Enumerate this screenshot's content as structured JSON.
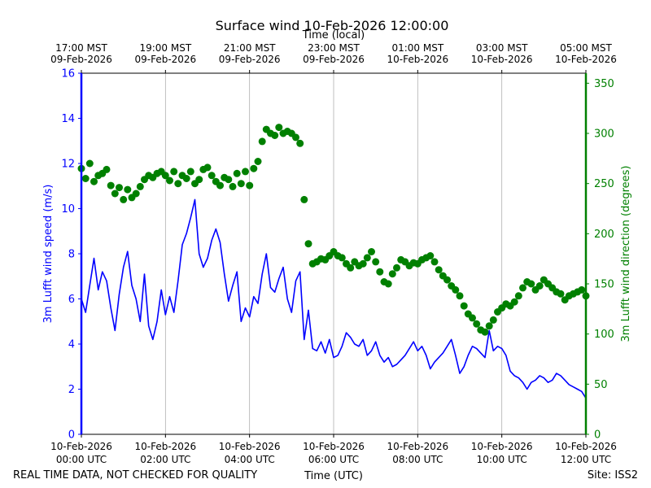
{
  "chart_data": {
    "type": "line",
    "title": "Surface wind 10-Feb-2026 12:00:00",
    "top_axis_label": "Time (local)",
    "top_ticks": [
      {
        "line1": "17:00 MST",
        "line2": "09-Feb-2026"
      },
      {
        "line1": "19:00 MST",
        "line2": "09-Feb-2026"
      },
      {
        "line1": "21:00 MST",
        "line2": "09-Feb-2026"
      },
      {
        "line1": "23:00 MST",
        "line2": "09-Feb-2026"
      },
      {
        "line1": "01:00 MST",
        "line2": "10-Feb-2026"
      },
      {
        "line1": "03:00 MST",
        "line2": "10-Feb-2026"
      },
      {
        "line1": "05:00 MST",
        "line2": "10-Feb-2026"
      }
    ],
    "bottom_ticks": [
      {
        "line1": "10-Feb-2026",
        "line2": "00:00 UTC"
      },
      {
        "line1": "10-Feb-2026",
        "line2": "02:00 UTC"
      },
      {
        "line1": "10-Feb-2026",
        "line2": "04:00 UTC"
      },
      {
        "line1": "10-Feb-2026",
        "line2": "06:00 UTC"
      },
      {
        "line1": "10-Feb-2026",
        "line2": "08:00 UTC"
      },
      {
        "line1": "10-Feb-2026",
        "line2": "10:00 UTC"
      },
      {
        "line1": "10-Feb-2026",
        "line2": "12:00 UTC"
      }
    ],
    "xlabel": "Time (UTC)",
    "xlim": [
      0,
      12
    ],
    "y_left": {
      "label": "3m Lufft wind speed (m/s)",
      "ylim": [
        0,
        16
      ],
      "ticks": [
        "0",
        "2",
        "4",
        "6",
        "8",
        "10",
        "12",
        "14",
        "16"
      ],
      "color": "#0000ff"
    },
    "y_right": {
      "label": "3m Lufft wind direction (degrees)",
      "ylim": [
        0,
        360
      ],
      "ticks": [
        "0",
        "50",
        "100",
        "150",
        "200",
        "250",
        "300",
        "350"
      ],
      "color": "#008000"
    },
    "grid": "vertical",
    "series": [
      {
        "name": "3m Lufft wind speed",
        "axis": "left",
        "style": "line",
        "color": "#0000ff",
        "x": [
          0.0,
          0.1,
          0.2,
          0.3,
          0.4,
          0.5,
          0.6,
          0.7,
          0.8,
          0.9,
          1.0,
          1.1,
          1.2,
          1.3,
          1.4,
          1.5,
          1.6,
          1.7,
          1.8,
          1.9,
          2.0,
          2.1,
          2.2,
          2.3,
          2.4,
          2.5,
          2.6,
          2.7,
          2.8,
          2.9,
          3.0,
          3.1,
          3.2,
          3.3,
          3.4,
          3.5,
          3.6,
          3.7,
          3.8,
          3.9,
          4.0,
          4.1,
          4.2,
          4.3,
          4.4,
          4.5,
          4.6,
          4.7,
          4.8,
          4.9,
          5.0,
          5.1,
          5.2,
          5.3,
          5.4,
          5.5,
          5.6,
          5.7,
          5.8,
          5.9,
          6.0,
          6.1,
          6.2,
          6.3,
          6.4,
          6.5,
          6.6,
          6.7,
          6.8,
          6.9,
          7.0,
          7.1,
          7.2,
          7.3,
          7.4,
          7.5,
          7.6,
          7.7,
          7.8,
          7.9,
          8.0,
          8.1,
          8.2,
          8.3,
          8.4,
          8.5,
          8.6,
          8.7,
          8.8,
          8.9,
          9.0,
          9.1,
          9.2,
          9.3,
          9.4,
          9.5,
          9.6,
          9.7,
          9.8,
          9.9,
          10.0,
          10.1,
          10.2,
          10.3,
          10.4,
          10.5,
          10.6,
          10.7,
          10.8,
          10.9,
          11.0,
          11.1,
          11.2,
          11.3,
          11.4,
          11.5,
          11.6,
          11.7,
          11.8,
          11.9,
          12.0
        ],
        "y": [
          6.0,
          5.4,
          6.6,
          7.8,
          6.4,
          7.2,
          6.8,
          5.6,
          4.6,
          6.2,
          7.4,
          8.1,
          6.6,
          6.0,
          5.0,
          7.1,
          4.8,
          4.2,
          5.0,
          6.4,
          5.3,
          6.1,
          5.4,
          6.8,
          8.4,
          8.9,
          9.6,
          10.4,
          8.0,
          7.4,
          7.8,
          8.6,
          9.1,
          8.5,
          7.1,
          5.9,
          6.6,
          7.2,
          5.0,
          5.6,
          5.2,
          6.1,
          5.8,
          7.1,
          8.0,
          6.5,
          6.3,
          6.9,
          7.4,
          6.0,
          5.4,
          6.8,
          7.2,
          4.2,
          5.5,
          3.8,
          3.7,
          4.1,
          3.6,
          4.2,
          3.4,
          3.5,
          3.9,
          4.5,
          4.3,
          4.0,
          3.9,
          4.2,
          3.5,
          3.7,
          4.1,
          3.5,
          3.2,
          3.4,
          3.0,
          3.1,
          3.3,
          3.5,
          3.8,
          4.1,
          3.7,
          3.9,
          3.5,
          2.9,
          3.2,
          3.4,
          3.6,
          3.9,
          4.2,
          3.5,
          2.7,
          3.0,
          3.5,
          3.9,
          3.8,
          3.6,
          3.4,
          4.6,
          3.7,
          3.9,
          3.8,
          3.5,
          2.8,
          2.6,
          2.5,
          2.3,
          2.0,
          2.3,
          2.4,
          2.6,
          2.5,
          2.3,
          2.4,
          2.7,
          2.6,
          2.4,
          2.2,
          2.1,
          2.0,
          1.9,
          1.6
        ]
      },
      {
        "name": "3m Lufft wind direction",
        "axis": "right",
        "style": "markers",
        "color": "#008000",
        "x": [
          0.0,
          0.1,
          0.2,
          0.3,
          0.4,
          0.5,
          0.6,
          0.7,
          0.8,
          0.9,
          1.0,
          1.1,
          1.2,
          1.3,
          1.4,
          1.5,
          1.6,
          1.7,
          1.8,
          1.9,
          2.0,
          2.1,
          2.2,
          2.3,
          2.4,
          2.5,
          2.6,
          2.7,
          2.8,
          2.9,
          3.0,
          3.1,
          3.2,
          3.3,
          3.4,
          3.5,
          3.6,
          3.7,
          3.8,
          3.9,
          4.0,
          4.1,
          4.2,
          4.3,
          4.4,
          4.5,
          4.6,
          4.7,
          4.8,
          4.9,
          5.0,
          5.1,
          5.2,
          5.3,
          5.4,
          5.5,
          5.6,
          5.7,
          5.8,
          5.9,
          6.0,
          6.1,
          6.2,
          6.3,
          6.4,
          6.5,
          6.6,
          6.7,
          6.8,
          6.9,
          7.0,
          7.1,
          7.2,
          7.3,
          7.4,
          7.5,
          7.6,
          7.7,
          7.8,
          7.9,
          8.0,
          8.1,
          8.2,
          8.3,
          8.4,
          8.5,
          8.6,
          8.7,
          8.8,
          8.9,
          9.0,
          9.1,
          9.2,
          9.3,
          9.4,
          9.5,
          9.6,
          9.7,
          9.8,
          9.9,
          10.0,
          10.1,
          10.2,
          10.3,
          10.4,
          10.5,
          10.6,
          10.7,
          10.8,
          10.9,
          11.0,
          11.1,
          11.2,
          11.3,
          11.4,
          11.5,
          11.6,
          11.7,
          11.8,
          11.9,
          12.0
        ],
        "y": [
          265,
          255,
          270,
          252,
          258,
          260,
          264,
          248,
          240,
          246,
          234,
          244,
          236,
          240,
          247,
          254,
          258,
          256,
          260,
          262,
          258,
          253,
          262,
          250,
          258,
          255,
          262,
          250,
          254,
          264,
          266,
          258,
          252,
          248,
          256,
          254,
          247,
          260,
          250,
          262,
          248,
          265,
          272,
          292,
          304,
          300,
          298,
          306,
          300,
          302,
          300,
          296,
          290,
          234,
          190,
          170,
          172,
          175,
          174,
          178,
          182,
          178,
          176,
          170,
          166,
          172,
          168,
          170,
          176,
          182,
          172,
          162,
          152,
          150,
          160,
          166,
          174,
          172,
          168,
          171,
          170,
          174,
          176,
          178,
          172,
          164,
          158,
          154,
          148,
          144,
          138,
          128,
          120,
          116,
          110,
          104,
          102,
          108,
          114,
          122,
          126,
          130,
          128,
          132,
          138,
          146,
          152,
          150,
          144,
          148,
          154,
          150,
          146,
          142,
          140,
          134,
          138,
          140,
          142,
          144,
          138
        ]
      }
    ]
  },
  "footer": {
    "left": "REAL TIME DATA, NOT CHECKED FOR QUALITY",
    "right": "Site: ISS2"
  }
}
